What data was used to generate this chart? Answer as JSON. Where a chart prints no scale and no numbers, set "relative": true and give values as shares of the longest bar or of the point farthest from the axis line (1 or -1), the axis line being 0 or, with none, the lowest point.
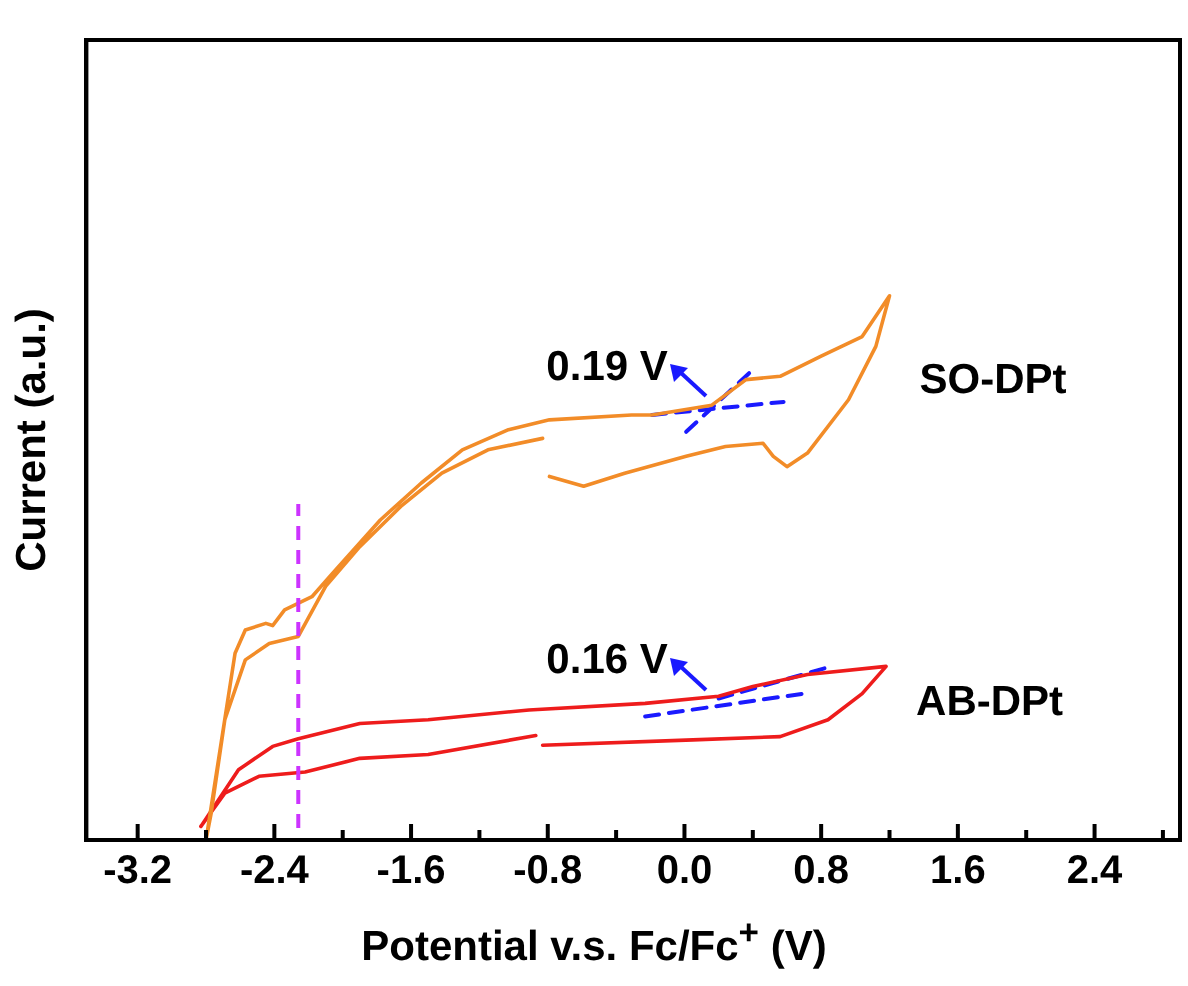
{
  "chart_data": {
    "type": "line",
    "relative": true,
    "xlabel": "Potential v.s. Fc/Fc$^{+}$ (V)",
    "ylabel": "Current (a.u.)",
    "xlim": [
      -3.5,
      2.9
    ],
    "xticks": [
      -3.2,
      {
        "value": -2.8,
        "label": null
      },
      -2.4,
      {
        "value": -2.0,
        "label": null
      },
      -1.6,
      {
        "value": -1.2,
        "label": null
      },
      -0.8,
      {
        "value": -0.4,
        "label": null
      },
      {
        "value": 0,
        "label": "0.0"
      },
      {
        "value": 0.4,
        "label": null
      },
      0.8,
      {
        "value": 1.2,
        "label": null
      },
      1.6,
      {
        "value": 2.0,
        "label": null
      },
      2.4,
      {
        "value": 2.8,
        "label": null
      }
    ],
    "marker": "none",
    "grid": false,
    "legend": false,
    "tick_labels": "x",
    "series": [
      {
        "name": "SO-DPt",
        "color": "#f28c28",
        "x": [
          -2.8,
          -2.63,
          -2.57,
          -2.45,
          -2.41,
          -2.34,
          -2.18,
          -2.06,
          -1.78,
          -1.54,
          -1.3,
          -1.03,
          -0.79,
          -0.31,
          -0.19,
          0.16,
          0.36,
          0.56,
          0.8,
          1.04,
          1.2,
          1.12,
          0.96,
          0.72,
          0.6,
          0.52,
          0.46,
          0.24,
          0.01,
          -0.35,
          -0.59,
          -0.79,
          -0.81,
          -0.83,
          -1.15,
          -1.42,
          -1.66,
          -1.9,
          -2.1,
          -2.26,
          -2.43,
          -2.57,
          -2.69,
          -2.77,
          -2.8
        ],
        "values": [
          0,
          0.343,
          0.386,
          0.398,
          0.394,
          0.423,
          0.447,
          0.49,
          0.588,
          0.656,
          0.717,
          0.754,
          0.772,
          0.781,
          0.781,
          0.799,
          0.846,
          0.852,
          0.889,
          0.925,
          1,
          0.907,
          0.809,
          0.711,
          0.686,
          0.705,
          0.729,
          0.723,
          0.705,
          0.674,
          0.65,
          0.668,
          null,
          0.738,
          0.717,
          0.674,
          0.613,
          0.539,
          0.466,
          0.374,
          0.361,
          0.331,
          0.221,
          0.049,
          0
        ]
      },
      {
        "name": "AB-DPt",
        "color": "#ee1c1c",
        "x": [
          -2.83,
          -2.61,
          -2.41,
          -2.26,
          -1.9,
          -1.5,
          -0.91,
          -0.23,
          0.2,
          0.4,
          0.72,
          1.18,
          1.04,
          0.84,
          0.56,
          0.05,
          -0.83,
          -0.85,
          -0.87,
          -1.5,
          -1.9,
          -2.22,
          -2.49,
          -2.69,
          -2.83
        ],
        "values": [
          0.025,
          0.129,
          0.172,
          0.186,
          0.214,
          0.221,
          0.239,
          0.251,
          0.264,
          0.282,
          0.304,
          0.319,
          0.269,
          0.221,
          0.19,
          0.184,
          0.174,
          null,
          0.192,
          0.157,
          0.15,
          0.125,
          0.117,
          0.086,
          0.025
        ]
      },
      {
        "color": "#1a1aff",
        "line_style": "dashed",
        "x": [
          -0.19,
          0.58
        ],
        "values": [
          0.781,
          0.805
        ]
      },
      {
        "color": "#1a1aff",
        "line_style": "dashed",
        "x": [
          0.01,
          0.42
        ],
        "values": [
          0.75,
          0.87
        ]
      },
      {
        "color": "#1a1aff",
        "line_style": "dashed",
        "x": [
          -0.23,
          0.72
        ],
        "values": [
          0.227,
          0.27
        ]
      },
      {
        "color": "#1a1aff",
        "line_style": "dashed",
        "x": [
          0.2,
          0.86
        ],
        "values": [
          0.26,
          0.319
        ]
      }
    ],
    "ref_lines": [
      {
        "axis": "x",
        "value": -2.26,
        "color": "#cc33ff",
        "line_style": "dashed"
      }
    ],
    "annotations": [
      {
        "text": "0.19 V",
        "x": 0.16,
        "y": 0.8
      },
      {
        "text": "0.16 V",
        "x": 0.16,
        "y": 0.262
      }
    ]
  }
}
